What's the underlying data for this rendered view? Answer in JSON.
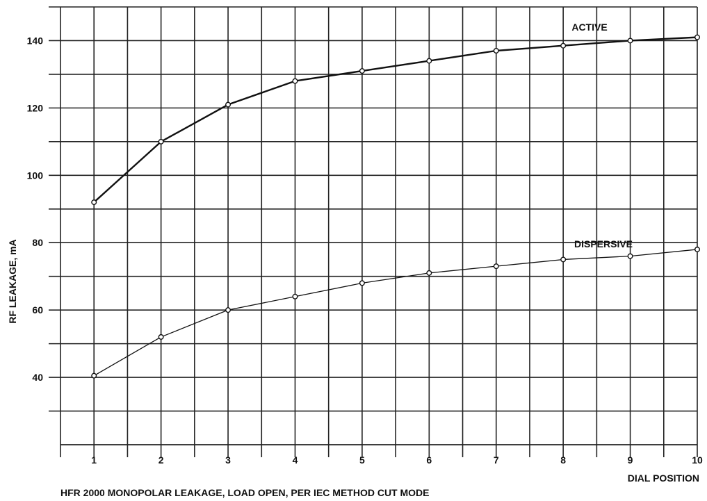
{
  "chart_data": {
    "type": "line",
    "title": "HFR 2000 MONOPOLAR LEAKAGE, LOAD OPEN, PER IEC METHOD   CUT MODE",
    "xlabel": "DIAL POSITION",
    "ylabel": "RF LEAKAGE, mA",
    "x": [
      1,
      2,
      3,
      4,
      5,
      6,
      7,
      8,
      9,
      10
    ],
    "xlim": [
      0.5,
      10
    ],
    "ylim": [
      20,
      150
    ],
    "x_ticks": [
      "1",
      "2",
      "3",
      "4",
      "5",
      "6",
      "7",
      "8",
      "9",
      "10"
    ],
    "y_ticks": [
      "40",
      "60",
      "80",
      "100",
      "120",
      "140"
    ],
    "grid": true,
    "series": [
      {
        "name": "ACTIVE",
        "values": [
          92,
          110,
          121,
          128,
          131,
          134,
          137,
          138.5,
          140,
          141
        ]
      },
      {
        "name": "DISPERSIVE",
        "values": [
          40.5,
          52,
          60,
          64,
          68,
          71,
          73,
          75,
          76,
          78
        ]
      }
    ],
    "colors": {
      "line": "#111111",
      "grid": "#222222",
      "background": "#ffffff"
    }
  }
}
